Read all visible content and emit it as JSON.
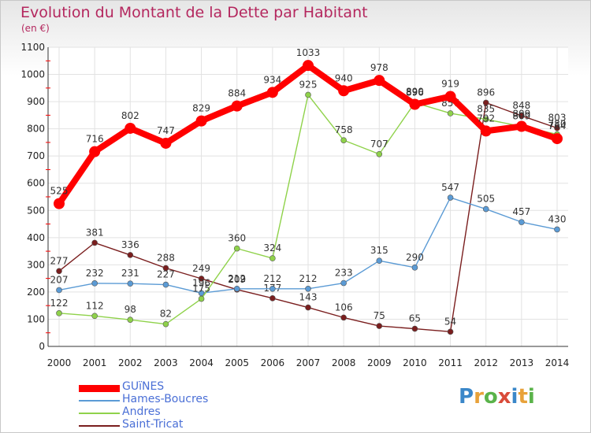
{
  "title": "Evolution du Montant de la Dette par Habitant",
  "unit": "(en €)",
  "logo_text": "Proxiti",
  "chart_data": {
    "type": "line",
    "title": "Evolution du Montant de la Dette par Habitant",
    "ylabel": "(en €)",
    "xlabel": "",
    "x": [
      "2000",
      "2001",
      "2002",
      "2003",
      "2004",
      "2005",
      "2006",
      "2007",
      "2008",
      "2009",
      "2010",
      "2011",
      "2012",
      "2013",
      "2014"
    ],
    "ylim": [
      0,
      1100
    ],
    "yticks": [
      0,
      100,
      200,
      300,
      400,
      500,
      600,
      700,
      800,
      900,
      1000,
      1100
    ],
    "grid": true,
    "legend_position": "bottom-left",
    "series": [
      {
        "name": "GUïNES",
        "color": "#ff0000",
        "values": [
          525,
          716,
          802,
          747,
          829,
          884,
          934,
          1033,
          940,
          978,
          890,
          919,
          792,
          809,
          764
        ]
      },
      {
        "name": "Hames-Boucres",
        "color": "#5b9bd5",
        "values": [
          207,
          232,
          231,
          227,
          196,
          212,
          212,
          212,
          233,
          315,
          290,
          547,
          505,
          457,
          430
        ]
      },
      {
        "name": "Andres",
        "color": "#8fd24a",
        "values": [
          122,
          112,
          98,
          82,
          175,
          360,
          324,
          925,
          758,
          707,
          896,
          857,
          835,
          809,
          780
        ]
      },
      {
        "name": "Saint-Tricat",
        "color": "#7a1e1e",
        "values": [
          277,
          381,
          336,
          288,
          249,
          209,
          177,
          143,
          106,
          75,
          65,
          54,
          896,
          848,
          803
        ]
      }
    ]
  }
}
